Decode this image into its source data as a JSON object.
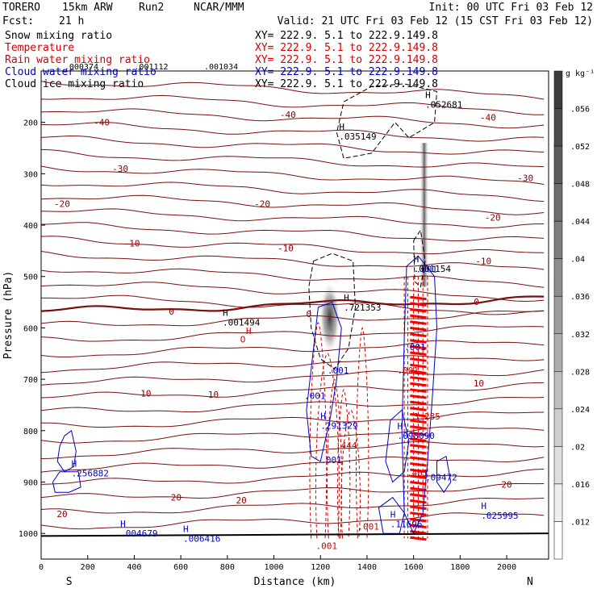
{
  "header": {
    "model": "TORERO",
    "resolution": "15km ARW",
    "run": "Run2",
    "org": "NCAR/MMM",
    "init": "Init: 00 UTC Fri 03 Feb 12",
    "fcst_label": "Fcst:",
    "fcst_hours": "21 h",
    "valid": "Valid: 21 UTC Fri 03 Feb 12 (15 CST Fri 03 Feb 12)"
  },
  "fields": [
    {
      "name": "Snow mixing ratio",
      "xy": "XY= 222.9.  5.1 to 222.9.149.8",
      "color": "#000000"
    },
    {
      "name": "Temperature",
      "xy": "XY= 222.9.  5.1 to 222.9.149.8",
      "color": "#d40000"
    },
    {
      "name": "Rain water mixing ratio",
      "xy": "XY= 222.9.  5.1 to 222.9.149.8",
      "color": "#d40000"
    },
    {
      "name": "Cloud water mixing ratio",
      "xy": "XY= 222.9.  5.1 to 222.9.149.8",
      "color": "#0000cc"
    },
    {
      "name": "Cloud ice mixing ratio",
      "xy": "XY= 222.9.  5.1 to 222.9.149.8",
      "color": "#000000"
    }
  ],
  "chart_data": {
    "type": "cross-section",
    "title": "TORERO 15km ARW Run2 NCAR/MMM",
    "xlabel": "Distance (km)",
    "ylabel": "Pressure (hPa)",
    "xlim": [
      0,
      2180
    ],
    "ylim": [
      1050,
      100
    ],
    "x_ticks": [
      0,
      200,
      400,
      600,
      800,
      1000,
      1200,
      1400,
      1600,
      1800,
      2000
    ],
    "y_ticks": [
      200,
      300,
      400,
      500,
      600,
      700,
      800,
      900,
      1000
    ],
    "x_end_labels": {
      "left": "S",
      "right": "N"
    },
    "temperature_labels": [
      {
        "text": "-40",
        "x": 260,
        "p": 200,
        "color": "#8b0000"
      },
      {
        "text": "-40",
        "x": 1060,
        "p": 185,
        "color": "#8b0000"
      },
      {
        "text": "-40",
        "x": 1920,
        "p": 190,
        "color": "#8b0000"
      },
      {
        "text": "-30",
        "x": 340,
        "p": 290,
        "color": "#8b0000"
      },
      {
        "text": "-30",
        "x": 2080,
        "p": 308,
        "color": "#8b0000"
      },
      {
        "text": "-20",
        "x": 90,
        "p": 358,
        "color": "#8b0000"
      },
      {
        "text": "-20",
        "x": 950,
        "p": 358,
        "color": "#8b0000"
      },
      {
        "text": "-20",
        "x": 1940,
        "p": 385,
        "color": "#8b0000"
      },
      {
        "text": "-10",
        "x": 390,
        "p": 435,
        "color": "#8b0000"
      },
      {
        "text": "-10",
        "x": 1050,
        "p": 445,
        "color": "#8b0000"
      },
      {
        "text": "-10",
        "x": 1900,
        "p": 470,
        "color": "#8b0000"
      },
      {
        "text": "0",
        "x": 560,
        "p": 568,
        "color": "#8b0000"
      },
      {
        "text": "0",
        "x": 1150,
        "p": 573,
        "color": "#8b0000"
      },
      {
        "text": "0",
        "x": 1870,
        "p": 549,
        "color": "#8b0000"
      },
      {
        "text": "10",
        "x": 450,
        "p": 727,
        "color": "#8b0000"
      },
      {
        "text": "10",
        "x": 740,
        "p": 730,
        "color": "#8b0000"
      },
      {
        "text": "10",
        "x": 1880,
        "p": 708,
        "color": "#8b0000"
      },
      {
        "text": "20",
        "x": 580,
        "p": 930,
        "color": "#8b0000"
      },
      {
        "text": "20",
        "x": 860,
        "p": 935,
        "color": "#8b0000"
      },
      {
        "text": "20",
        "x": 90,
        "p": 962,
        "color": "#8b0000"
      },
      {
        "text": "20",
        "x": 2000,
        "p": 905,
        "color": "#8b0000"
      }
    ],
    "extrema": [
      {
        "text": ".052681",
        "x": 1650,
        "p": 168,
        "color": "#000000"
      },
      {
        "text": ".035149",
        "x": 1280,
        "p": 230,
        "color": "#000000"
      },
      {
        "text": ".001154",
        "x": 1600,
        "p": 488,
        "color": "#000000"
      },
      {
        "text": ".721353",
        "x": 1300,
        "p": 563,
        "color": "#000000"
      },
      {
        "text": ".001494",
        "x": 780,
        "p": 592,
        "color": "#000000"
      },
      {
        "text": ".291329",
        "x": 1200,
        "p": 793,
        "color": "#0000cc"
      },
      {
        "text": ".098090",
        "x": 1530,
        "p": 813,
        "color": "#0000cc"
      },
      {
        "text": ".256882",
        "x": 130,
        "p": 886,
        "color": "#0000cc"
      },
      {
        "text": ".025995",
        "x": 1890,
        "p": 968,
        "color": "#0000cc"
      },
      {
        "text": ".004679",
        "x": 340,
        "p": 1003,
        "color": "#0000cc"
      },
      {
        "text": ".006416",
        "x": 610,
        "p": 1013,
        "color": "#0000cc"
      },
      {
        "text": ".11696",
        "x": 1500,
        "p": 985,
        "color": "#0000cc"
      }
    ],
    "contour_labels": [
      {
        "text": ".001",
        "x": 1610,
        "p": 492,
        "color": "#0000cc"
      },
      {
        "text": ".001",
        "x": 1560,
        "p": 643,
        "color": "#0000cc"
      },
      {
        "text": ".001",
        "x": 1530,
        "p": 689,
        "color": "#d40000"
      },
      {
        "text": ".001",
        "x": 1230,
        "p": 689,
        "color": "#0000cc"
      },
      {
        "text": ".001",
        "x": 1130,
        "p": 738,
        "color": "#0000cc"
      },
      {
        "text": ".001",
        "x": 1200,
        "p": 863,
        "color": "#0000cc"
      },
      {
        "text": ".444",
        "x": 1265,
        "p": 835,
        "color": "#d40000"
      },
      {
        "text": "3.285",
        "x": 1600,
        "p": 778,
        "color": "#d40000"
      },
      {
        "text": ".401",
        "x": 1570,
        "p": 888,
        "color": "#d40000"
      },
      {
        "text": ".09472",
        "x": 1650,
        "p": 897,
        "color": "#0000cc"
      },
      {
        "text": ".001",
        "x": 1360,
        "p": 993,
        "color": "#d40000"
      },
      {
        "text": ".001",
        "x": 1180,
        "p": 1030,
        "color": "#d40000"
      },
      {
        "text": "O",
        "x": 855,
        "p": 628,
        "color": "#d40000"
      },
      {
        "text": "H",
        "x": 880,
        "p": 612,
        "color": "#d40000"
      }
    ],
    "colorbar": {
      "units": "g kg⁻¹",
      "ticks": [
        ".056",
        ".052",
        ".048",
        ".044",
        ".04",
        ".036",
        ".032",
        ".028",
        ".024",
        ".02",
        ".016",
        ".012"
      ]
    },
    "top_strip_values": [
      ".000374",
      ".001112",
      ".001034"
    ],
    "freezing_level_hpa": 560,
    "temperature_contours_C": [
      -40,
      -30,
      -20,
      -10,
      0,
      10,
      20
    ],
    "isotherm_interval_C": 5
  }
}
